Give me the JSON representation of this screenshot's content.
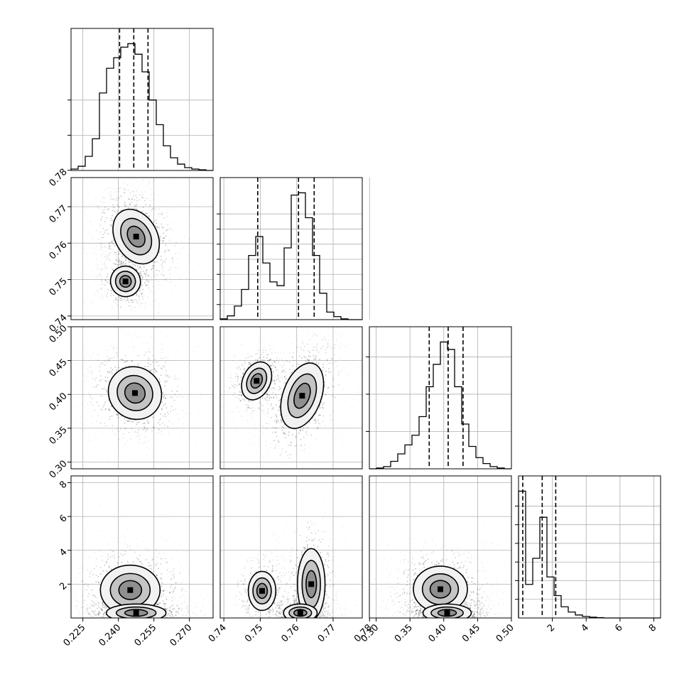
{
  "chart_data": {
    "type": "corner",
    "parameters": [
      {
        "range": [
          0.22,
          0.28
        ],
        "ticks": [
          "0.225",
          "0.240",
          "0.255",
          "0.270"
        ],
        "quantiles": [
          0.2405,
          0.2465,
          0.2525
        ],
        "hist_y": [
          2,
          6,
          20,
          45,
          110,
          145,
          160,
          175,
          180,
          165,
          140,
          100,
          65,
          35,
          18,
          9,
          4,
          2,
          1,
          0
        ],
        "hist_ticks": [
          50,
          100
        ]
      },
      {
        "range": [
          0.739,
          0.778
        ],
        "ticks": [
          "0.74",
          "0.75",
          "0.76",
          "0.77",
          "0.78"
        ],
        "quantiles": [
          0.7493,
          0.7605,
          0.7648
        ],
        "hist_y": [
          1,
          5,
          18,
          40,
          85,
          110,
          75,
          50,
          45,
          95,
          165,
          168,
          135,
          85,
          35,
          10,
          4,
          1,
          0,
          0
        ],
        "hist_ticks": [
          20,
          40,
          60,
          80,
          100,
          120,
          140
        ]
      },
      {
        "range": [
          0.29,
          0.5
        ],
        "ticks": [
          "0.30",
          "0.35",
          "0.40",
          "0.45",
          "0.50"
        ],
        "quantiles": [
          0.3785,
          0.4065,
          0.4285
        ],
        "hist_y": [
          0,
          1,
          3,
          10,
          20,
          32,
          45,
          70,
          110,
          140,
          170,
          160,
          110,
          60,
          30,
          15,
          7,
          3,
          1,
          0
        ],
        "hist_ticks": [
          50,
          100,
          150
        ]
      },
      {
        "range": [
          0,
          8.4
        ],
        "ticks": [
          "2",
          "4",
          "6",
          "8"
        ],
        "quantiles": [
          0.25,
          1.4,
          2.2
        ],
        "hist_y": [
          340,
          90,
          160,
          270,
          110,
          60,
          30,
          16,
          8,
          4,
          2,
          1,
          0,
          0,
          0,
          0,
          0,
          0,
          0,
          0
        ],
        "hist_ticks": [
          50,
          100,
          150,
          200,
          250,
          300
        ]
      }
    ],
    "y_ticks_first_row": {
      "1": [
        "0.74",
        "0.75",
        "0.76",
        "0.77",
        "0.78"
      ],
      "2": [
        "0.30",
        "0.35",
        "0.40",
        "0.45",
        "0.50"
      ],
      "3": [
        "2",
        "4",
        "6",
        "8"
      ]
    },
    "pair_modes": [
      {
        "pair": [
          1,
          0
        ],
        "blobs": [
          {
            "x": 0.2475,
            "y": 0.7618,
            "sx": 0.0042,
            "sy": 0.0038,
            "rot": 30,
            "w": 1.0
          },
          {
            "x": 0.243,
            "y": 0.7495,
            "sx": 0.003,
            "sy": 0.002,
            "rot": 20,
            "w": 0.55
          }
        ]
      },
      {
        "pair": [
          2,
          0
        ],
        "blobs": [
          {
            "x": 0.247,
            "y": 0.402,
            "sx": 0.0055,
            "sy": 0.018,
            "rot": -40,
            "w": 1.0
          }
        ]
      },
      {
        "pair": [
          2,
          1
        ],
        "blobs": [
          {
            "x": 0.749,
            "y": 0.42,
            "sx": 0.0018,
            "sy": 0.014,
            "rot": -25,
            "w": 0.55
          },
          {
            "x": 0.7615,
            "y": 0.398,
            "sx": 0.0025,
            "sy": 0.024,
            "rot": -20,
            "w": 1.0
          }
        ]
      },
      {
        "pair": [
          3,
          0
        ],
        "blobs": [
          {
            "x": 0.245,
            "y": 1.65,
            "sx": 0.006,
            "sy": 0.7,
            "rot": 0,
            "w": 0.8
          },
          {
            "x": 0.2475,
            "y": 0.3,
            "sx": 0.006,
            "sy": 0.25,
            "rot": 0,
            "w": 1.0
          }
        ]
      },
      {
        "pair": [
          3,
          1
        ],
        "blobs": [
          {
            "x": 0.7505,
            "y": 1.6,
            "sx": 0.0018,
            "sy": 0.55,
            "rot": 0,
            "w": 0.5
          },
          {
            "x": 0.764,
            "y": 2.0,
            "sx": 0.0018,
            "sy": 1.0,
            "rot": 0,
            "w": 0.6
          },
          {
            "x": 0.761,
            "y": 0.3,
            "sx": 0.0022,
            "sy": 0.25,
            "rot": 0,
            "w": 1.0
          }
        ]
      },
      {
        "pair": [
          3,
          2
        ],
        "blobs": [
          {
            "x": 0.395,
            "y": 1.7,
            "sx": 0.019,
            "sy": 0.65,
            "rot": 0,
            "w": 0.8
          },
          {
            "x": 0.405,
            "y": 0.3,
            "sx": 0.017,
            "sy": 0.25,
            "rot": 0,
            "w": 1.0
          }
        ]
      }
    ]
  }
}
